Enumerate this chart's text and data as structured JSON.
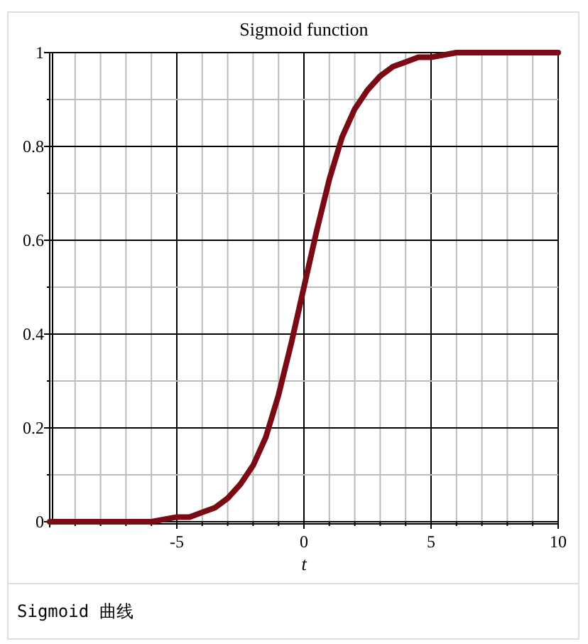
{
  "chart_data": {
    "type": "line",
    "title": "Sigmoid function",
    "xlabel": "t",
    "x": [
      -10,
      -9,
      -8,
      -7,
      -6,
      -5,
      -4.5,
      -4,
      -3.5,
      -3,
      -2.5,
      -2,
      -1.5,
      -1,
      -0.5,
      0,
      0.5,
      1,
      1.5,
      2,
      2.5,
      3,
      3.5,
      4,
      4.5,
      5,
      6,
      7,
      8,
      9,
      10
    ],
    "series": [
      {
        "color": "#7a0a14",
        "values": [
          0,
          0,
          0,
          0,
          0,
          0.01,
          0.01,
          0.02,
          0.03,
          0.05,
          0.08,
          0.12,
          0.18,
          0.27,
          0.38,
          0.5,
          0.62,
          0.73,
          0.82,
          0.88,
          0.92,
          0.95,
          0.97,
          0.98,
          0.99,
          0.99,
          1,
          1,
          1,
          1,
          1
        ]
      }
    ],
    "xlim": [
      -10,
      10
    ],
    "ylim": [
      0,
      1
    ],
    "xticks": [
      {
        "value": -10,
        "label": null
      },
      {
        "value": -9,
        "label": null
      },
      {
        "value": -8,
        "label": null
      },
      {
        "value": -7,
        "label": null
      },
      {
        "value": -6,
        "label": null
      },
      -5,
      {
        "value": -4,
        "label": null
      },
      {
        "value": -3,
        "label": null
      },
      {
        "value": -2,
        "label": null
      },
      {
        "value": -1,
        "label": null
      },
      0,
      {
        "value": 1,
        "label": null
      },
      {
        "value": 2,
        "label": null
      },
      {
        "value": 3,
        "label": null
      },
      {
        "value": 4,
        "label": null
      },
      5,
      {
        "value": 6,
        "label": null
      },
      {
        "value": 7,
        "label": null
      },
      {
        "value": 8,
        "label": null
      },
      {
        "value": 9,
        "label": null
      },
      10
    ],
    "yticks": [
      0,
      {
        "value": 0.1,
        "label": null
      },
      0.2,
      {
        "value": 0.3,
        "label": null
      },
      0.4,
      {
        "value": 0.5,
        "label": null
      },
      0.6,
      {
        "value": 0.7,
        "label": null
      },
      0.8,
      {
        "value": 0.9,
        "label": null
      },
      1
    ],
    "grid": true,
    "marker": "none",
    "line_style": "solid",
    "annotations": [
      "Sigmoid 曲线"
    ]
  }
}
